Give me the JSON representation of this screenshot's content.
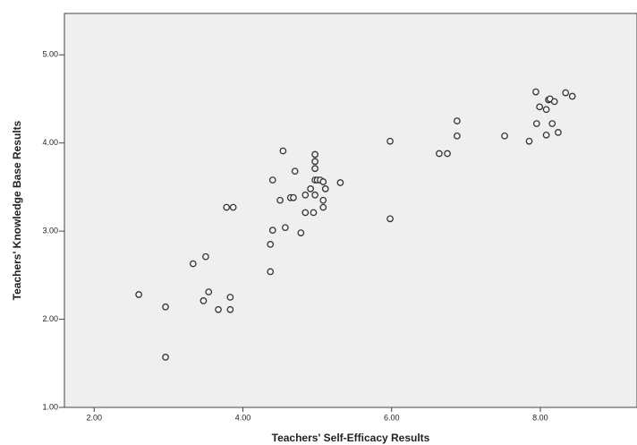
{
  "chart_data": {
    "type": "scatter",
    "x_label": "Teachers' Self-Efficacy Results",
    "y_label": "Teachers' Knowledge Base Results",
    "x": [
      2.6,
      2.96,
      2.96,
      3.33,
      3.5,
      3.54,
      3.47,
      3.67,
      3.83,
      3.83,
      3.78,
      3.87,
      4.37,
      4.37,
      4.4,
      4.4,
      4.54,
      4.5,
      4.57,
      4.64,
      4.68,
      4.7,
      4.78,
      4.84,
      4.84,
      4.91,
      4.95,
      4.97,
      4.97,
      4.97,
      4.97,
      4.97,
      5.0,
      5.04,
      5.08,
      5.08,
      5.08,
      5.11,
      5.31,
      5.98,
      5.98,
      6.64,
      6.75,
      6.88,
      6.88,
      7.52,
      7.85,
      7.94,
      7.99,
      7.95,
      8.08,
      8.08,
      8.11,
      8.13,
      8.16,
      8.19,
      8.24,
      8.34,
      8.43
    ],
    "y": [
      2.28,
      2.14,
      1.57,
      2.63,
      2.71,
      2.31,
      2.21,
      2.11,
      2.25,
      2.11,
      3.27,
      3.27,
      2.54,
      2.85,
      3.01,
      3.58,
      3.91,
      3.35,
      3.04,
      3.38,
      3.38,
      3.68,
      2.98,
      3.41,
      3.21,
      3.48,
      3.21,
      3.87,
      3.79,
      3.71,
      3.58,
      3.41,
      3.58,
      3.58,
      3.56,
      3.35,
      3.27,
      3.48,
      3.55,
      4.02,
      3.14,
      3.88,
      3.88,
      4.25,
      4.08,
      4.08,
      4.02,
      4.58,
      4.41,
      4.22,
      4.09,
      4.38,
      4.49,
      4.5,
      4.22,
      4.47,
      4.12,
      4.57,
      4.53
    ],
    "color": "#333333",
    "xlim": [
      1.6,
      9.3
    ],
    "ylim": [
      1.0,
      5.47
    ],
    "xticks": [
      {
        "value": 2,
        "label": "2.00"
      },
      {
        "value": 4,
        "label": "4.00"
      },
      {
        "value": 6,
        "label": "6.00"
      },
      {
        "value": 8,
        "label": "8.00"
      }
    ],
    "yticks": [
      {
        "value": 1,
        "label": "1.00"
      },
      {
        "value": 2,
        "label": "2.00"
      },
      {
        "value": 3,
        "label": "3.00"
      },
      {
        "value": 4,
        "label": "4.00"
      },
      {
        "value": 5,
        "label": "5.00"
      }
    ]
  }
}
